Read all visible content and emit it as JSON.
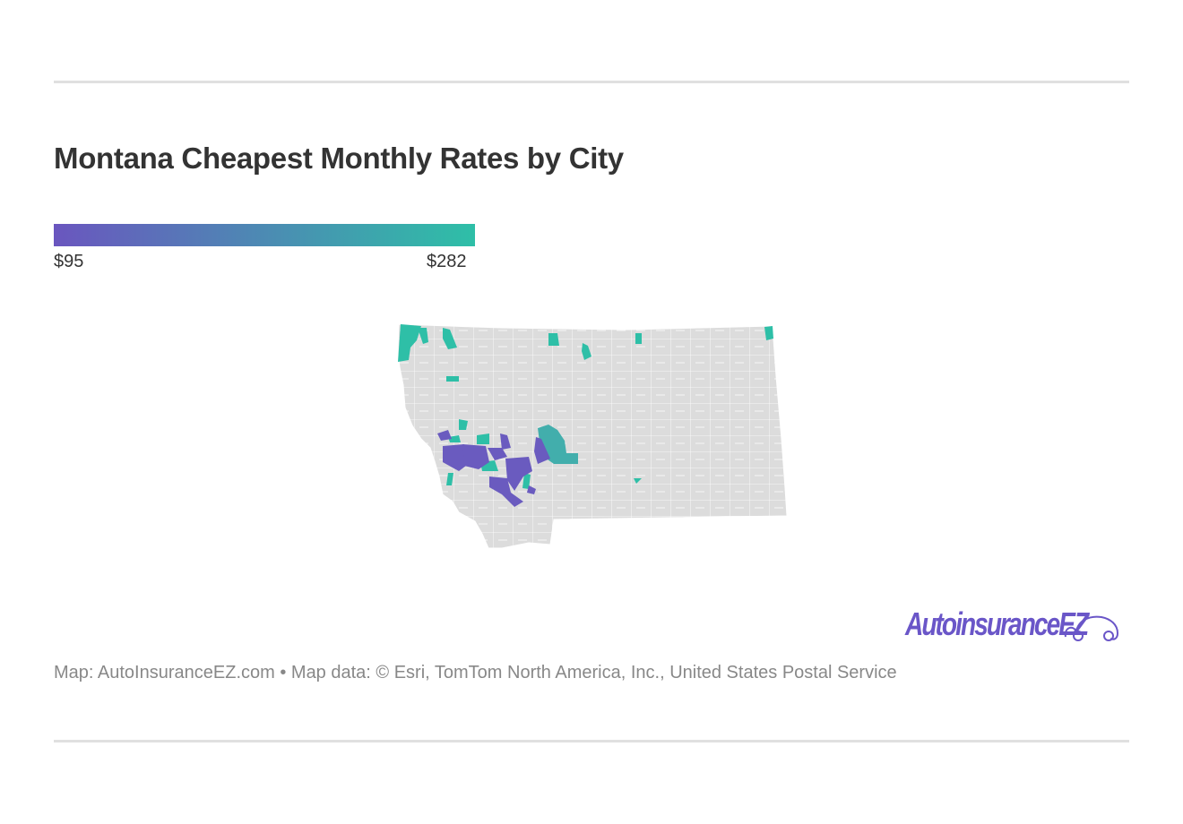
{
  "title": "Montana Cheapest Monthly Rates by City",
  "legend": {
    "min_label": "$95",
    "max_label": "$282",
    "min_color": "#6a56bf",
    "max_color": "#2ebfa7"
  },
  "map": {
    "region": "Montana",
    "base_color": "#dcdcdc",
    "border_color": "#ffffff"
  },
  "logo": {
    "text": "AutoinsuranceEZ",
    "icon": "car-outline-icon"
  },
  "footer": {
    "source": "Map: AutoInsuranceEZ.com • Map data: © Esri, TomTom North America, Inc., United States Postal Service"
  }
}
